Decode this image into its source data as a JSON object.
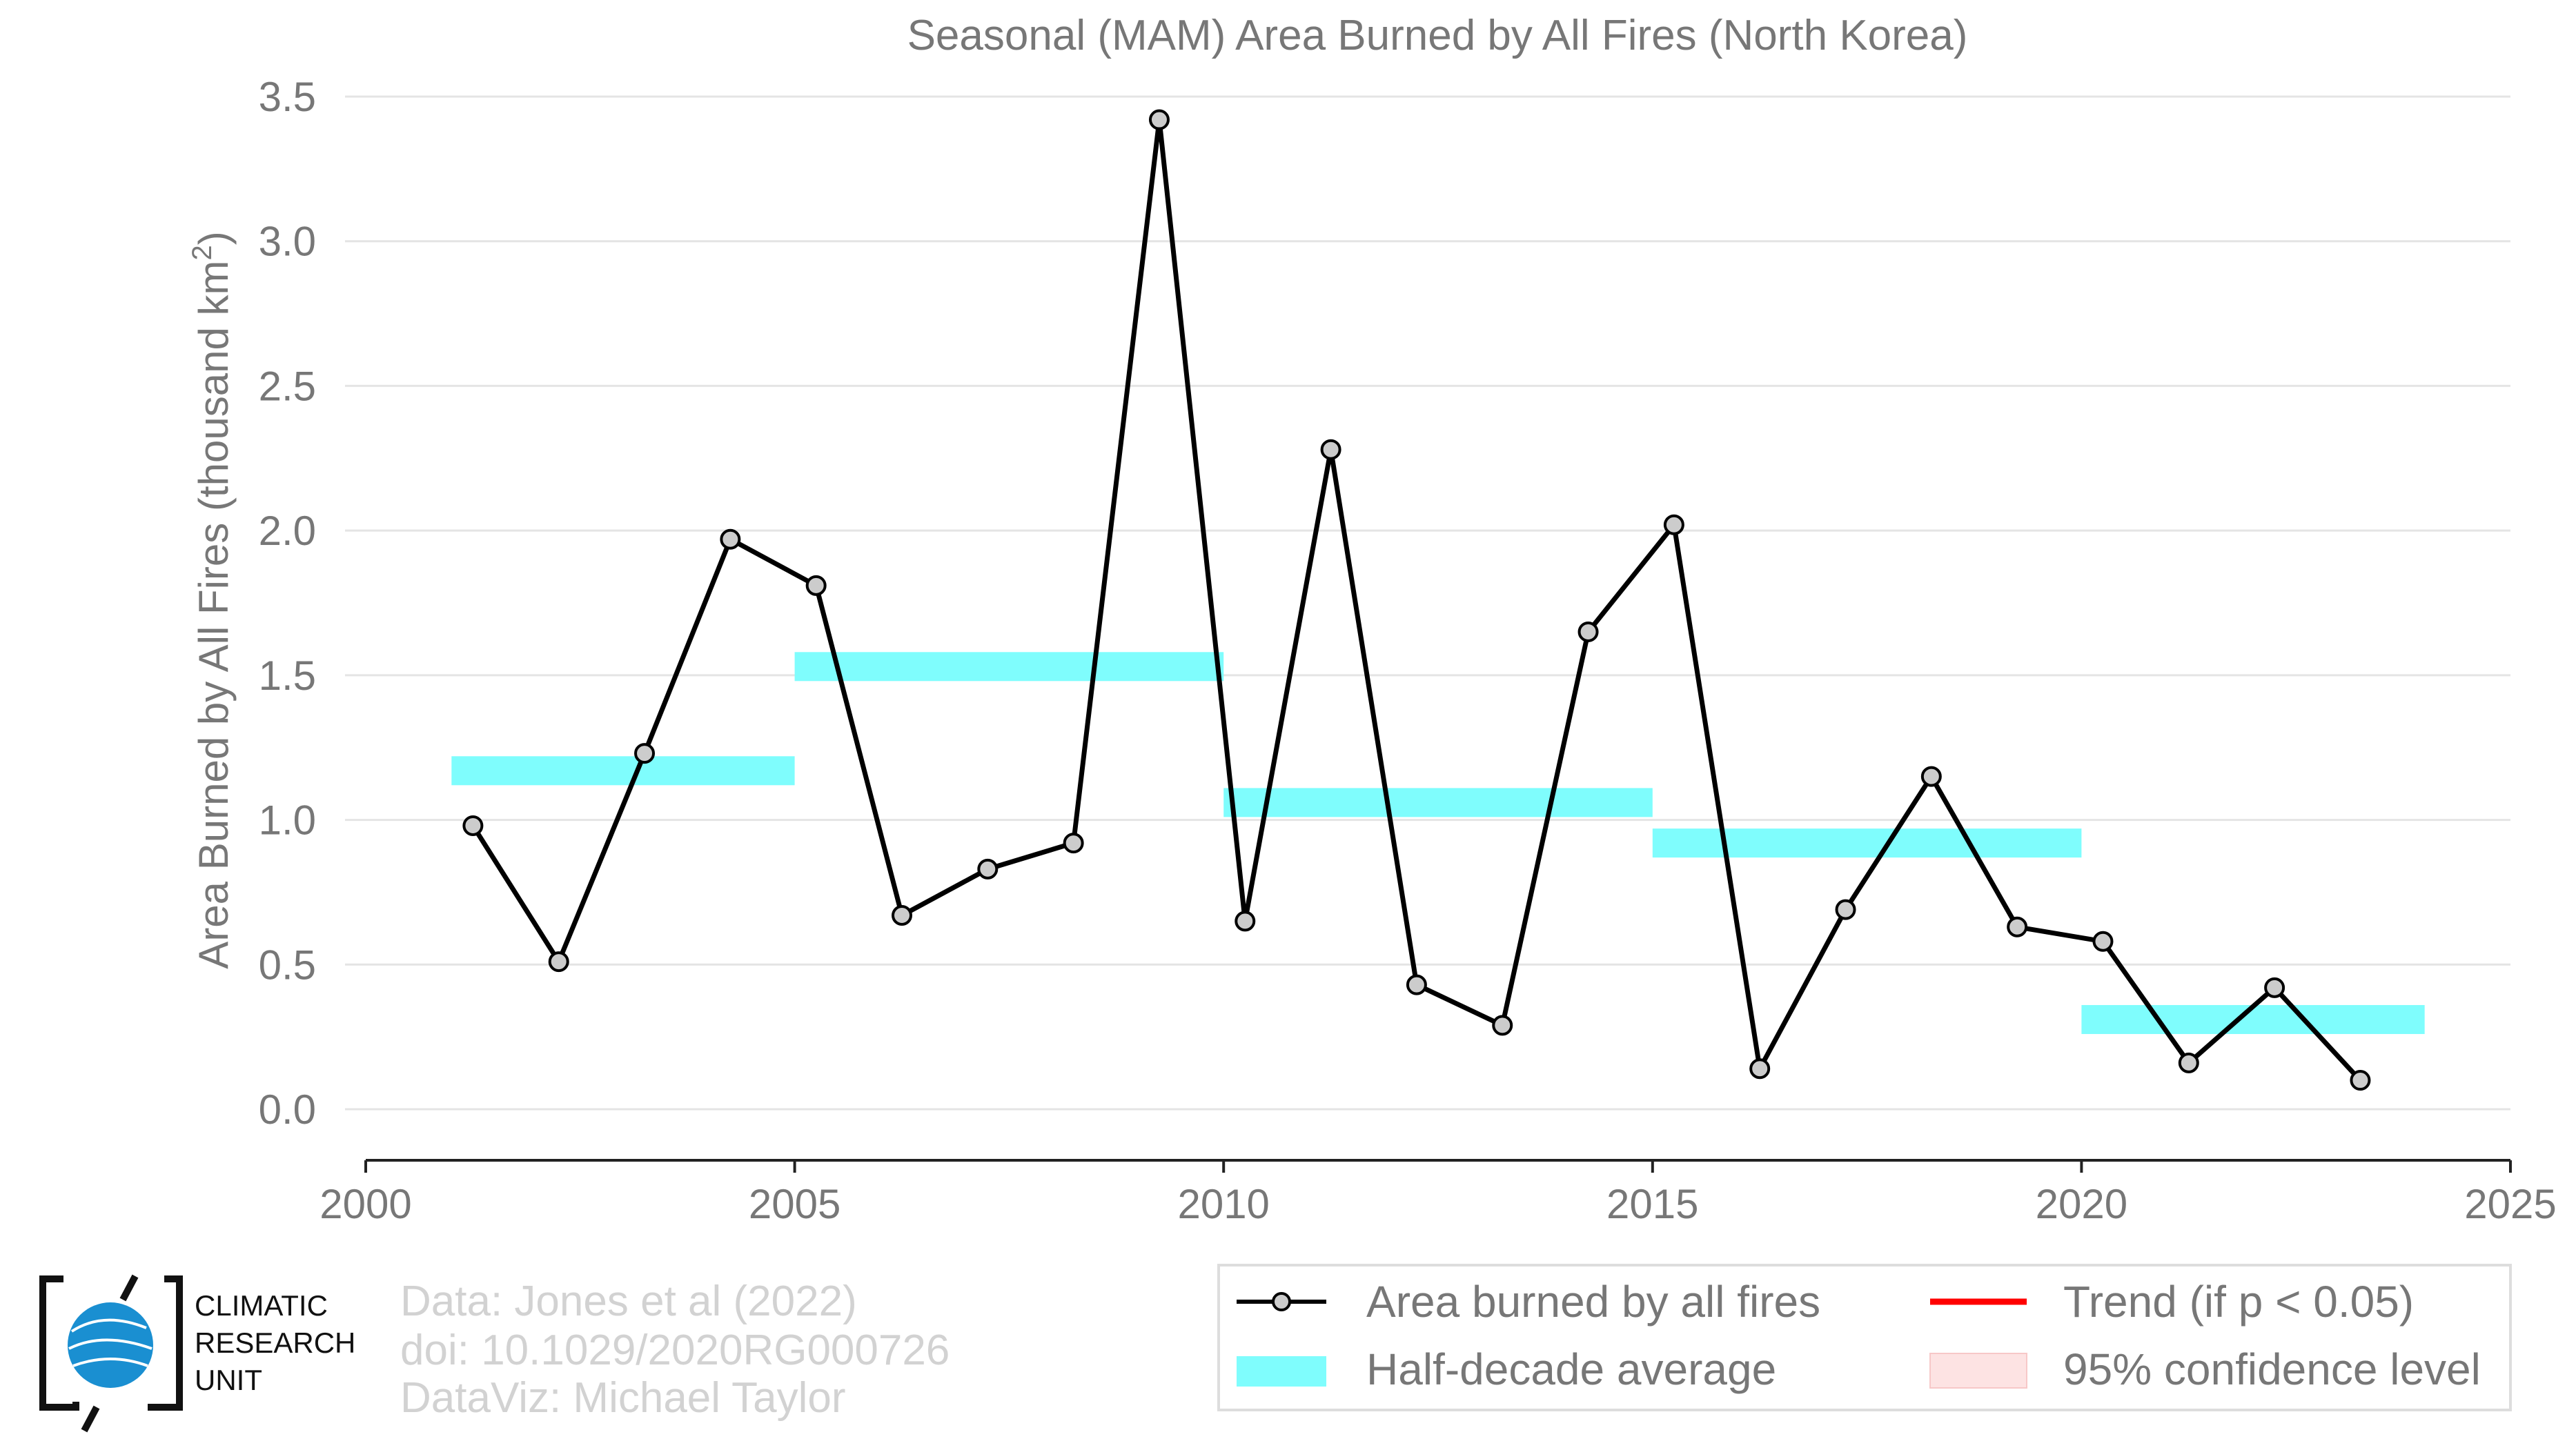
{
  "chart_data": {
    "type": "line",
    "title": "Seasonal (MAM) Area Burned by All Fires (North Korea)",
    "ylabel": "Area Burned by All Fires (thousand km",
    "ylabel_sup": "2",
    "ylabel_close": ")",
    "xlabel": "",
    "xlim": [
      2000,
      2025
    ],
    "ylim": [
      -0.17,
      3.5
    ],
    "xticks": [
      "2000",
      "2005",
      "2010",
      "2015",
      "2020",
      "2025"
    ],
    "yticks": [
      "0.0",
      "0.5",
      "1.0",
      "1.5",
      "2.0",
      "2.5",
      "3.0",
      "3.5"
    ],
    "grid": true,
    "legend_position": "bottom-right",
    "series": [
      {
        "name": "Area burned by all fires",
        "color": "#000000",
        "marker_fill": "#cccccc",
        "x": [
          2001.25,
          2002.25,
          2003.25,
          2004.25,
          2005.25,
          2006.25,
          2007.25,
          2008.25,
          2009.25,
          2010.25,
          2011.25,
          2012.25,
          2013.25,
          2014.25,
          2015.25,
          2016.25,
          2017.25,
          2018.25,
          2019.25,
          2020.25,
          2021.25,
          2022.25,
          2023.25
        ],
        "y": [
          0.98,
          0.51,
          1.23,
          1.97,
          1.81,
          0.67,
          0.83,
          0.92,
          3.42,
          0.65,
          2.28,
          0.43,
          0.29,
          1.65,
          2.02,
          0.14,
          0.69,
          1.15,
          0.63,
          0.58,
          0.16,
          0.42,
          0.1
        ]
      },
      {
        "name": "Half-decade average",
        "color": "#7ffdfd",
        "segments": [
          {
            "x_start": 2001,
            "x_end": 2005,
            "y": 1.17
          },
          {
            "x_start": 2005,
            "x_end": 2010,
            "y": 1.53
          },
          {
            "x_start": 2010,
            "x_end": 2015,
            "y": 1.06
          },
          {
            "x_start": 2015,
            "x_end": 2020,
            "y": 0.92
          },
          {
            "x_start": 2020,
            "x_end": 2024,
            "y": 0.31
          }
        ]
      }
    ],
    "legend": [
      {
        "label": "Area burned by all fires",
        "kind": "line-marker",
        "color": "#000000"
      },
      {
        "label": "Trend (if p < 0.05)",
        "kind": "line",
        "color": "#ff0000"
      },
      {
        "label": "Half-decade average",
        "kind": "band",
        "color": "#7ffdfd"
      },
      {
        "label": "95% confidence level",
        "kind": "band",
        "color": "#fde3e3"
      }
    ]
  },
  "credits": [
    "Data: Jones et al (2022)",
    "doi: 10.1029/2020RG000726",
    "DataViz: Michael Taylor"
  ],
  "logo": {
    "lines": [
      "CLIMATIC",
      "RESEARCH",
      "UNIT"
    ],
    "color": "#1a8fd1"
  }
}
